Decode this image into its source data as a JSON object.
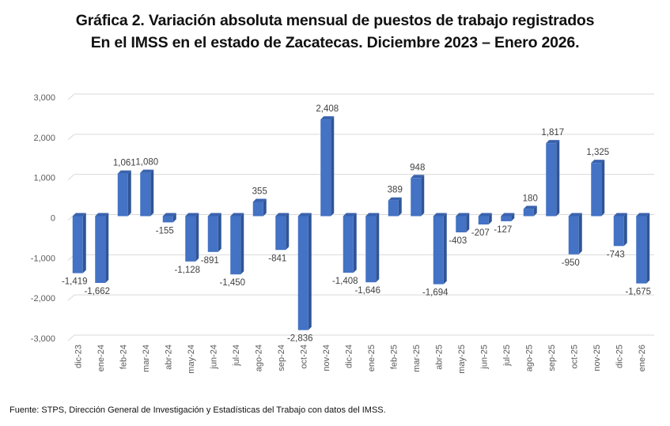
{
  "chart_data": {
    "type": "bar",
    "title_line1": "Gráfica 2. Variación absoluta mensual de puestos de trabajo registrados",
    "title_line2": "En el IMSS en el estado de Zacatecas. Diciembre 2023 – Enero 2026.",
    "xlabel": "",
    "ylabel": "",
    "ylim": [
      -3000,
      3000
    ],
    "yticks": [
      3000,
      2000,
      1000,
      0,
      -1000,
      -2000,
      -3000
    ],
    "ytick_labels": [
      "3,000",
      "2,000",
      "1,000",
      "0",
      "-1,000",
      "-2,000",
      "-3,000"
    ],
    "grid": true,
    "legend": "none",
    "bar_color": "#4472C4",
    "bar_side_color": "#2F5597",
    "categories": [
      "dic-23",
      "ene-24",
      "feb-24",
      "mar-24",
      "abr-24",
      "may-24",
      "jun-24",
      "jul-24",
      "ago-24",
      "sep-24",
      "oct-24",
      "nov-24",
      "dic-24",
      "ene-25",
      "feb-25",
      "mar-25",
      "abr-25",
      "may-25",
      "jun-25",
      "jul-25",
      "ago-25",
      "sep-25",
      "oct-25",
      "nov-25",
      "dic-25",
      "ene-26"
    ],
    "values": [
      -1419,
      -1662,
      1061,
      1080,
      -155,
      -1128,
      -891,
      -1450,
      355,
      -841,
      -2836,
      2408,
      -1408,
      -1646,
      389,
      948,
      -1694,
      -403,
      -207,
      -127,
      180,
      1817,
      -950,
      1325,
      -743,
      -1675
    ],
    "data_labels": [
      "-1,419",
      "-1,662",
      "1,061",
      "1,080",
      "-155",
      "-1,128",
      "-891",
      "-1,450",
      "355",
      "-841",
      "-2,836",
      "2,408",
      "-1,408",
      "-1,646",
      "389",
      "948",
      "-1,694",
      "-403",
      "-207",
      "-127",
      "180",
      "1,817",
      "-950",
      "1,325",
      "-743",
      "-1,675"
    ]
  },
  "footer": {
    "source": "Fuente: STPS, Dirección General de Investigación y Estadísticas del Trabajo con datos del IMSS."
  }
}
